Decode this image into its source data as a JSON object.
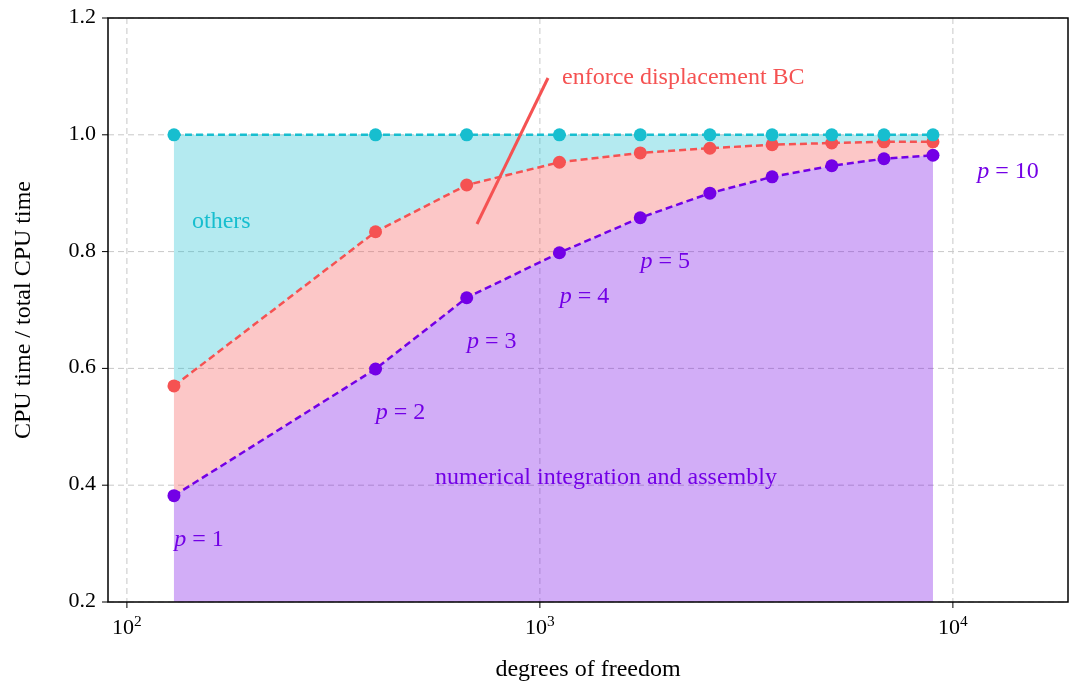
{
  "chart_data": {
    "type": "area",
    "xlabel": "degrees of freedom",
    "ylabel": "CPU time / total CPU time",
    "log": "x",
    "x": [
      130,
      400,
      665,
      1115,
      1750,
      2580,
      3650,
      5090,
      6810,
      8950
    ],
    "series": [
      {
        "name": "numerical integration and assembly",
        "color": "#7300e6",
        "values": [
          0.382,
          0.599,
          0.721,
          0.798,
          0.858,
          0.9,
          0.928,
          0.947,
          0.959,
          0.965
        ]
      },
      {
        "name": "enforce displacement BC",
        "color": "#f55252",
        "values": [
          0.57,
          0.834,
          0.914,
          0.953,
          0.969,
          0.977,
          0.983,
          0.986,
          0.988,
          0.988
        ]
      },
      {
        "name": "others",
        "color": "#17becf",
        "values": [
          1,
          1,
          1,
          1,
          1,
          1,
          1,
          1,
          1,
          1
        ]
      }
    ],
    "xlim": [
      90,
      19000
    ],
    "ylim": [
      0.2,
      1.2
    ],
    "xticks": [
      {
        "value": 100,
        "label": "10$^{2}$"
      },
      {
        "value": 1000,
        "label": "10$^{3}$"
      },
      {
        "value": 10000,
        "label": "10$^{4}$"
      }
    ],
    "yticks": [
      {
        "value": 0.2,
        "label": "0.2"
      },
      {
        "value": 0.4,
        "label": "0.4"
      },
      {
        "value": 0.6,
        "label": "0.6"
      },
      {
        "value": 0.8,
        "label": "0.8"
      },
      {
        "value": 1.0,
        "label": "1.0"
      },
      {
        "value": 1.2,
        "label": "1.2"
      }
    ],
    "grid": true,
    "marker": "circle",
    "line_style": "dashed",
    "annotations": [
      {
        "text": "p = 1",
        "x": 130,
        "y": 0.382
      },
      {
        "text": "p = 2",
        "x": 400,
        "y": 0.599
      },
      {
        "text": "p = 3",
        "x": 665,
        "y": 0.721
      },
      {
        "text": "p = 4",
        "x": 1115,
        "y": 0.798
      },
      {
        "text": "p = 5",
        "x": 1750,
        "y": 0.858
      },
      {
        "text": "p = 10",
        "x": 8950,
        "y": 0.965
      }
    ]
  }
}
